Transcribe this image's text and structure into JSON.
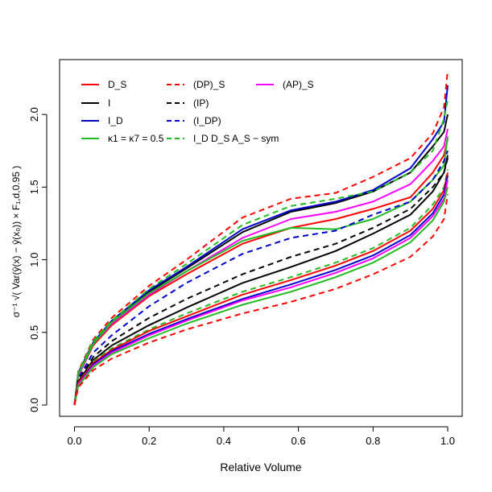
{
  "chart_data": {
    "type": "line",
    "xlabel": "Relative Volume",
    "ylabel": "σ⁻¹ √( Var(ŷ(x) − ŷ(x₀)) × F₁,d,0.95 )",
    "xlim": [
      0,
      1
    ],
    "ylim": [
      0,
      2.3
    ],
    "x_ticks": [
      "0.0",
      "0.2",
      "0.4",
      "0.6",
      "0.8",
      "1.0"
    ],
    "y_ticks": [
      "0.0",
      "0.5",
      "1.0",
      "1.5",
      "2.0"
    ],
    "legend_placement": "top-left",
    "legend": [
      {
        "label": "D_S",
        "color": "#ff0000",
        "dash": "solid"
      },
      {
        "label": "I",
        "color": "#000000",
        "dash": "solid"
      },
      {
        "label": "I_D",
        "color": "#0000cc",
        "dash": "solid"
      },
      {
        "label": "κ1 =  κ7 = 0.5",
        "color": "#22bb22",
        "dash": "solid"
      },
      {
        "label": "(DP)_S",
        "color": "#ff0000",
        "dash": "dashed"
      },
      {
        "label": "(IP)",
        "color": "#000000",
        "dash": "dashed"
      },
      {
        "label": "(I_DP)",
        "color": "#0000cc",
        "dash": "dashed"
      },
      {
        "label": "I_D D_S A_S − sym",
        "color": "#22bb22",
        "dash": "dashed"
      },
      {
        "label": "(AP)_S",
        "color": "#ff00ff",
        "dash": "solid"
      }
    ],
    "series": [
      {
        "color": "#ff0000",
        "dash": "solid",
        "x": [
          0,
          0.01,
          0.05,
          0.1,
          0.2,
          0.3,
          0.45,
          0.58,
          0.7,
          0.8,
          0.9,
          0.96,
          0.99,
          1.0
        ],
        "y": [
          0,
          0.2,
          0.41,
          0.55,
          0.75,
          0.9,
          1.11,
          1.22,
          1.28,
          1.35,
          1.43,
          1.6,
          1.72,
          1.83
        ]
      },
      {
        "color": "#000000",
        "dash": "solid",
        "x": [
          0,
          0.01,
          0.05,
          0.1,
          0.2,
          0.3,
          0.45,
          0.58,
          0.7,
          0.8,
          0.9,
          0.96,
          0.99,
          1.0
        ],
        "y": [
          0,
          0.21,
          0.42,
          0.57,
          0.78,
          0.94,
          1.19,
          1.33,
          1.39,
          1.47,
          1.6,
          1.78,
          1.88,
          2.0
        ]
      },
      {
        "color": "#0000cc",
        "dash": "solid",
        "x": [
          0,
          0.01,
          0.05,
          0.1,
          0.2,
          0.3,
          0.45,
          0.58,
          0.7,
          0.8,
          0.9,
          0.96,
          0.99,
          1.0
        ],
        "y": [
          0,
          0.22,
          0.43,
          0.58,
          0.79,
          0.95,
          1.21,
          1.34,
          1.4,
          1.48,
          1.63,
          1.83,
          1.95,
          2.2
        ]
      },
      {
        "color": "#ff00ff",
        "dash": "solid",
        "x": [
          0,
          0.01,
          0.05,
          0.1,
          0.2,
          0.3,
          0.45,
          0.58,
          0.7,
          0.8,
          0.9,
          0.96,
          0.99,
          1.0
        ],
        "y": [
          0,
          0.2,
          0.42,
          0.56,
          0.76,
          0.92,
          1.15,
          1.28,
          1.33,
          1.4,
          1.52,
          1.68,
          1.78,
          1.9
        ]
      },
      {
        "color": "#22bb22",
        "dash": "solid",
        "x": [
          0,
          0.01,
          0.05,
          0.1,
          0.2,
          0.3,
          0.45,
          0.58,
          0.7,
          0.8,
          0.9,
          0.96,
          0.99,
          1.0
        ],
        "y": [
          0,
          0.21,
          0.42,
          0.57,
          0.77,
          0.92,
          1.13,
          1.22,
          1.21,
          1.28,
          1.4,
          1.55,
          1.65,
          1.85
        ]
      },
      {
        "color": "#ff0000",
        "dash": "dashed",
        "x": [
          0,
          0.01,
          0.05,
          0.1,
          0.2,
          0.3,
          0.45,
          0.58,
          0.7,
          0.8,
          0.9,
          0.96,
          0.99,
          1.0
        ],
        "y": [
          0,
          0.23,
          0.45,
          0.6,
          0.82,
          1.0,
          1.29,
          1.42,
          1.46,
          1.57,
          1.7,
          1.87,
          2.05,
          2.3
        ]
      },
      {
        "color": "#22bb22",
        "dash": "dashed",
        "x": [
          0,
          0.01,
          0.05,
          0.1,
          0.2,
          0.3,
          0.45,
          0.58,
          0.7,
          0.8,
          0.9,
          0.96,
          0.99,
          1.0
        ],
        "y": [
          0,
          0.22,
          0.44,
          0.58,
          0.8,
          0.97,
          1.24,
          1.37,
          1.42,
          1.47,
          1.6,
          1.75,
          1.97,
          2.1
        ]
      },
      {
        "color": "#0000cc",
        "dash": "dashed",
        "x": [
          0,
          0.01,
          0.05,
          0.1,
          0.2,
          0.3,
          0.45,
          0.58,
          0.7,
          0.8,
          0.9,
          0.96,
          0.99,
          1.0
        ],
        "y": [
          0,
          0.18,
          0.36,
          0.48,
          0.68,
          0.84,
          1.04,
          1.15,
          1.2,
          1.31,
          1.4,
          1.55,
          1.68,
          1.75
        ]
      },
      {
        "color": "#000000",
        "dash": "dashed",
        "x": [
          0,
          0.01,
          0.05,
          0.1,
          0.2,
          0.3,
          0.45,
          0.58,
          0.7,
          0.8,
          0.9,
          0.96,
          0.99,
          1.0
        ],
        "y": [
          0,
          0.17,
          0.33,
          0.44,
          0.6,
          0.73,
          0.9,
          1.02,
          1.11,
          1.22,
          1.35,
          1.5,
          1.6,
          1.7
        ]
      },
      {
        "color": "#000000",
        "dash": "solid",
        "x": [
          0,
          0.01,
          0.05,
          0.1,
          0.2,
          0.3,
          0.45,
          0.58,
          0.7,
          0.8,
          0.9,
          0.96,
          0.99,
          1.0
        ],
        "y": [
          0,
          0.16,
          0.31,
          0.41,
          0.55,
          0.67,
          0.84,
          0.95,
          1.06,
          1.18,
          1.31,
          1.47,
          1.6,
          1.72
        ]
      },
      {
        "color": "#22bb22",
        "dash": "dashed",
        "x": [
          0,
          0.01,
          0.05,
          0.1,
          0.2,
          0.3,
          0.45,
          0.58,
          0.7,
          0.8,
          0.9,
          0.96,
          0.99,
          1.0
        ],
        "y": [
          0,
          0.15,
          0.3,
          0.39,
          0.52,
          0.63,
          0.78,
          0.88,
          0.98,
          1.08,
          1.22,
          1.38,
          1.5,
          1.62
        ]
      },
      {
        "color": "#ff0000",
        "dash": "solid",
        "x": [
          0,
          0.01,
          0.05,
          0.1,
          0.2,
          0.3,
          0.45,
          0.58,
          0.7,
          0.8,
          0.9,
          0.96,
          0.99,
          1.0
        ],
        "y": [
          0,
          0.15,
          0.29,
          0.38,
          0.51,
          0.61,
          0.76,
          0.86,
          0.96,
          1.06,
          1.2,
          1.35,
          1.48,
          1.6
        ]
      },
      {
        "color": "#0000cc",
        "dash": "solid",
        "x": [
          0,
          0.01,
          0.05,
          0.1,
          0.2,
          0.3,
          0.45,
          0.58,
          0.7,
          0.8,
          0.9,
          0.96,
          0.99,
          1.0
        ],
        "y": [
          0,
          0.14,
          0.28,
          0.37,
          0.49,
          0.59,
          0.73,
          0.83,
          0.93,
          1.03,
          1.17,
          1.32,
          1.45,
          1.58
        ]
      },
      {
        "color": "#ff00ff",
        "dash": "solid",
        "x": [
          0,
          0.01,
          0.05,
          0.1,
          0.2,
          0.3,
          0.45,
          0.58,
          0.7,
          0.8,
          0.9,
          0.96,
          0.99,
          1.0
        ],
        "y": [
          0,
          0.14,
          0.27,
          0.36,
          0.48,
          0.58,
          0.72,
          0.81,
          0.91,
          1.01,
          1.15,
          1.3,
          1.42,
          1.55
        ]
      },
      {
        "color": "#22bb22",
        "dash": "solid",
        "x": [
          0,
          0.01,
          0.05,
          0.1,
          0.2,
          0.3,
          0.45,
          0.58,
          0.7,
          0.8,
          0.9,
          0.96,
          0.99,
          1.0
        ],
        "y": [
          0,
          0.13,
          0.26,
          0.35,
          0.46,
          0.56,
          0.69,
          0.78,
          0.88,
          0.98,
          1.12,
          1.27,
          1.4,
          1.5
        ]
      },
      {
        "color": "#ff0000",
        "dash": "dashed",
        "x": [
          0,
          0.01,
          0.05,
          0.1,
          0.2,
          0.3,
          0.45,
          0.58,
          0.7,
          0.8,
          0.9,
          0.96,
          0.99,
          1.0
        ],
        "y": [
          0,
          0.12,
          0.24,
          0.32,
          0.43,
          0.52,
          0.63,
          0.71,
          0.8,
          0.9,
          1.02,
          1.16,
          1.28,
          1.45
        ]
      }
    ]
  }
}
